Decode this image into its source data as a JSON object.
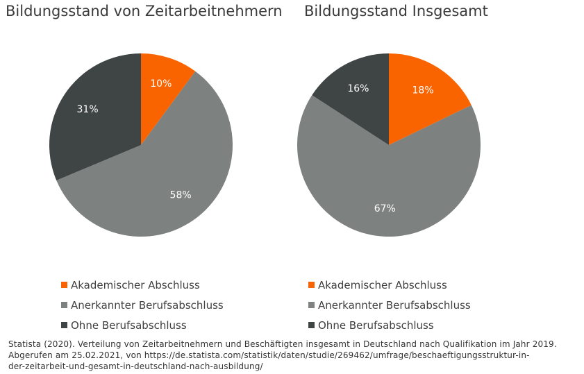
{
  "colors": {
    "akademisch": "#fa6400",
    "anerkannt": "#7d817f",
    "ohne": "#3f4544",
    "label_text": "#ffffff"
  },
  "chart_data": [
    {
      "type": "pie",
      "title": "Bildungsstand von Zeitarbeitnehmern",
      "slices": [
        {
          "label": "Akademischer Abschluss",
          "value": 10,
          "display": "10%",
          "color": "#fa6400"
        },
        {
          "label": "Anerkannter Berufsabschluss",
          "value": 58,
          "display": "58%",
          "color": "#7d817f"
        },
        {
          "label": "Ohne Berufsabschluss",
          "value": 31,
          "display": "31%",
          "color": "#3f4544"
        }
      ],
      "start": "12 o'clock",
      "direction": "clockwise",
      "legend_position": "bottom"
    },
    {
      "type": "pie",
      "title": "Bildungsstand Insgesamt",
      "slices": [
        {
          "label": "Akademischer Abschluss",
          "value": 18,
          "display": "18%",
          "color": "#fa6400"
        },
        {
          "label": "Anerkannter Berufsabschluss",
          "value": 67,
          "display": "67%",
          "color": "#7d817f"
        },
        {
          "label": "Ohne Berufsabschluss",
          "value": 16,
          "display": "16%",
          "color": "#3f4544"
        }
      ],
      "start": "12 o'clock",
      "direction": "clockwise",
      "legend_position": "bottom"
    }
  ],
  "source": {
    "line1": "Statista (2020). Verteilung von Zeitarbeitnehmern  und Beschäftigten  insgesamt in Deutschland nach Qualifikation im Jahr 2019.",
    "line2": "Abgerufen  am 25.02.2021,  von https://de.statista.com/statistik/daten/studie/269462/umfrage/beschaeftigungsstruktur-in-",
    "line3": "der-zeitarbeit-und-gesamt-in-deutschland-nach-ausbildung/"
  }
}
